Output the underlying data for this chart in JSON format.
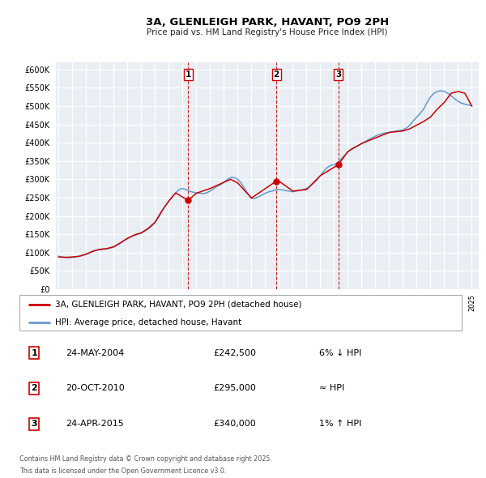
{
  "title": "3A, GLENLEIGH PARK, HAVANT, PO9 2PH",
  "subtitle": "Price paid vs. HM Land Registry's House Price Index (HPI)",
  "legend_line1": "3A, GLENLEIGH PARK, HAVANT, PO9 2PH (detached house)",
  "legend_line2": "HPI: Average price, detached house, Havant",
  "footnote1": "Contains HM Land Registry data © Crown copyright and database right 2025.",
  "footnote2": "This data is licensed under the Open Government Licence v3.0.",
  "red_color": "#cc0000",
  "blue_color": "#6699cc",
  "background_color": "#e8eef4",
  "grid_color": "#ffffff",
  "ylim": [
    0,
    620000
  ],
  "yticks": [
    0,
    50000,
    100000,
    150000,
    200000,
    250000,
    300000,
    350000,
    400000,
    450000,
    500000,
    550000,
    600000
  ],
  "xlim_start": 1994.8,
  "xlim_end": 2025.5,
  "sales": [
    {
      "year": 2004.39,
      "price": 242500,
      "label": "1"
    },
    {
      "year": 2010.8,
      "price": 295000,
      "label": "2"
    },
    {
      "year": 2015.31,
      "price": 340000,
      "label": "3"
    }
  ],
  "vline_years": [
    2004.39,
    2010.8,
    2015.31
  ],
  "table_rows": [
    {
      "num": "1",
      "date": "24-MAY-2004",
      "price": "£242,500",
      "note": "6% ↓ HPI"
    },
    {
      "num": "2",
      "date": "20-OCT-2010",
      "price": "£295,000",
      "note": "≈ HPI"
    },
    {
      "num": "3",
      "date": "24-APR-2015",
      "price": "£340,000",
      "note": "1% ↑ HPI"
    }
  ],
  "hpi_data": {
    "years": [
      1995.0,
      1995.25,
      1995.5,
      1995.75,
      1996.0,
      1996.25,
      1996.5,
      1996.75,
      1997.0,
      1997.25,
      1997.5,
      1997.75,
      1998.0,
      1998.25,
      1998.5,
      1998.75,
      1999.0,
      1999.25,
      1999.5,
      1999.75,
      2000.0,
      2000.25,
      2000.5,
      2000.75,
      2001.0,
      2001.25,
      2001.5,
      2001.75,
      2002.0,
      2002.25,
      2002.5,
      2002.75,
      2003.0,
      2003.25,
      2003.5,
      2003.75,
      2004.0,
      2004.25,
      2004.5,
      2004.75,
      2005.0,
      2005.25,
      2005.5,
      2005.75,
      2006.0,
      2006.25,
      2006.5,
      2006.75,
      2007.0,
      2007.25,
      2007.5,
      2007.75,
      2008.0,
      2008.25,
      2008.5,
      2008.75,
      2009.0,
      2009.25,
      2009.5,
      2009.75,
      2010.0,
      2010.25,
      2010.5,
      2010.75,
      2011.0,
      2011.25,
      2011.5,
      2011.75,
      2012.0,
      2012.25,
      2012.5,
      2012.75,
      2013.0,
      2013.25,
      2013.5,
      2013.75,
      2014.0,
      2014.25,
      2014.5,
      2014.75,
      2015.0,
      2015.25,
      2015.5,
      2015.75,
      2016.0,
      2016.25,
      2016.5,
      2016.75,
      2017.0,
      2017.25,
      2017.5,
      2017.75,
      2018.0,
      2018.25,
      2018.5,
      2018.75,
      2019.0,
      2019.25,
      2019.5,
      2019.75,
      2020.0,
      2020.25,
      2020.5,
      2020.75,
      2021.0,
      2021.25,
      2021.5,
      2021.75,
      2022.0,
      2022.25,
      2022.5,
      2022.75,
      2023.0,
      2023.25,
      2023.5,
      2023.75,
      2024.0,
      2024.25,
      2024.5,
      2024.75,
      2025.0
    ],
    "values": [
      90000,
      88000,
      87000,
      86000,
      87000,
      88000,
      90000,
      92000,
      95000,
      99000,
      103000,
      107000,
      108000,
      109000,
      110000,
      112000,
      115000,
      120000,
      126000,
      133000,
      138000,
      143000,
      147000,
      150000,
      153000,
      158000,
      165000,
      172000,
      182000,
      196000,
      213000,
      228000,
      240000,
      252000,
      263000,
      272000,
      275000,
      272000,
      268000,
      265000,
      263000,
      262000,
      261000,
      263000,
      268000,
      274000,
      281000,
      285000,
      292000,
      300000,
      305000,
      305000,
      300000,
      290000,
      275000,
      260000,
      248000,
      248000,
      252000,
      257000,
      262000,
      266000,
      268000,
      271000,
      272000,
      271000,
      269000,
      268000,
      266000,
      268000,
      270000,
      272000,
      275000,
      281000,
      289000,
      298000,
      310000,
      322000,
      332000,
      338000,
      340000,
      345000,
      355000,
      365000,
      375000,
      383000,
      388000,
      392000,
      397000,
      403000,
      408000,
      413000,
      418000,
      422000,
      425000,
      427000,
      428000,
      430000,
      432000,
      433000,
      435000,
      440000,
      448000,
      460000,
      470000,
      480000,
      492000,
      510000,
      525000,
      535000,
      540000,
      542000,
      540000,
      535000,
      528000,
      520000,
      513000,
      508000,
      505000,
      503000,
      502000
    ]
  },
  "price_data": {
    "years": [
      1995.0,
      1995.5,
      1996.0,
      1996.5,
      1997.0,
      1997.5,
      1998.0,
      1998.5,
      1999.0,
      1999.5,
      2000.0,
      2000.5,
      2001.0,
      2001.5,
      2002.0,
      2002.5,
      2003.0,
      2003.5,
      2004.39,
      2005.0,
      2006.0,
      2007.0,
      2007.5,
      2008.0,
      2009.0,
      2010.8,
      2011.0,
      2012.0,
      2013.0,
      2014.0,
      2015.31,
      2016.0,
      2017.0,
      2018.0,
      2019.0,
      2020.0,
      2020.5,
      2021.0,
      2021.5,
      2022.0,
      2022.5,
      2023.0,
      2023.5,
      2024.0,
      2024.5,
      2025.0
    ],
    "values": [
      88000,
      87000,
      88000,
      90000,
      96000,
      104000,
      109000,
      111000,
      116000,
      127000,
      139000,
      148000,
      154000,
      166000,
      183000,
      214000,
      241000,
      263000,
      242500,
      262000,
      275000,
      292000,
      300000,
      290000,
      249000,
      295000,
      295000,
      268000,
      272000,
      310000,
      340000,
      376000,
      398000,
      413000,
      428000,
      432000,
      438000,
      448000,
      458000,
      470000,
      492000,
      510000,
      535000,
      540000,
      535000,
      500000
    ]
  }
}
